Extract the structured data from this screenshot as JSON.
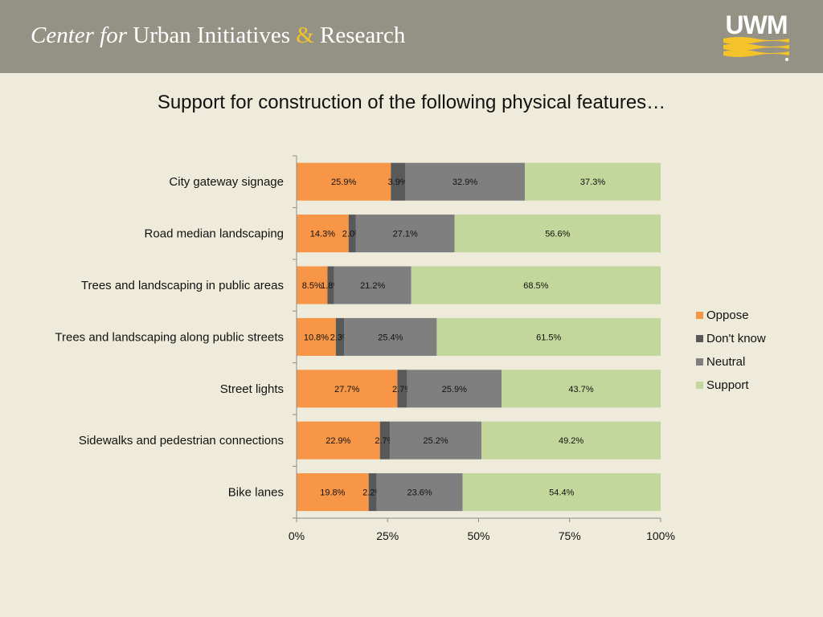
{
  "header": {
    "title_prefix": "Center for",
    "title_main": "Urban Initiatives",
    "title_amp": "&",
    "title_end": "Research",
    "logo_text": "UWM"
  },
  "chart_data": {
    "type": "bar",
    "orientation": "horizontal",
    "stacked": true,
    "title": "Support for construction of the following physical features…",
    "categories": [
      "City gateway signage",
      "Road median landscaping",
      "Trees and landscaping in public areas",
      "Trees and landscaping along public streets",
      "Street lights",
      "Sidewalks and pedestrian connections",
      "Bike lanes"
    ],
    "series": [
      {
        "name": "Oppose",
        "color": "#f79646",
        "values": [
          25.9,
          14.3,
          8.5,
          10.8,
          27.7,
          22.9,
          19.8
        ]
      },
      {
        "name": "Don't know",
        "color": "#595959",
        "values": [
          3.9,
          2.0,
          1.8,
          2.3,
          2.7,
          2.7,
          2.2
        ]
      },
      {
        "name": "Neutral",
        "color": "#7f7f7f",
        "values": [
          32.9,
          27.1,
          21.2,
          25.4,
          25.9,
          25.2,
          23.6
        ]
      },
      {
        "name": "Support",
        "color": "#c3d69b",
        "values": [
          37.3,
          56.6,
          68.5,
          61.5,
          43.7,
          49.2,
          54.4
        ]
      }
    ],
    "data_labels": [
      [
        "25.9%",
        "14.3%",
        "8.5%",
        "10.8%",
        "27.7%",
        "22.9%",
        "19.8%"
      ],
      [
        "3.9%",
        "2.0%",
        "1.8%",
        "2.3%",
        "2.7%",
        "2.7%",
        "2.2%"
      ],
      [
        "32.9%",
        "27.1%",
        "21.2%",
        "25.4%",
        "25.9%",
        "25.2%",
        "23.6%"
      ],
      [
        "37.3%",
        "56.6%",
        "68.5%",
        "61.5%",
        "43.7%",
        "49.2%",
        "54.4%"
      ]
    ],
    "x_ticks": [
      "0%",
      "25%",
      "50%",
      "75%",
      "100%"
    ],
    "xlim": [
      0,
      100
    ],
    "grid": false,
    "legend_position": "right"
  }
}
